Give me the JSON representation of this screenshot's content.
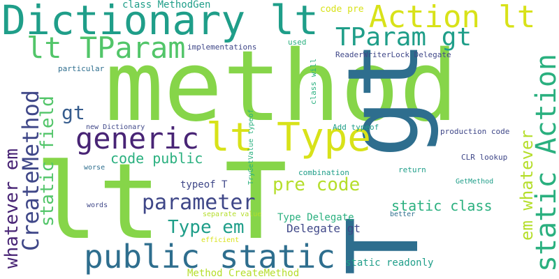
{
  "palette": {
    "yellow": "#d8e219",
    "yellow_green": "#b5de2b",
    "light_green": "#86d549",
    "green": "#52c569",
    "teal_green": "#2ab07f",
    "teal": "#1f9e89",
    "teal_blue": "#26828e",
    "steel_blue": "#2e6e8e",
    "slate_blue": "#365c8d",
    "indigo": "#3f4788",
    "violet": "#482475",
    "dark_purple": "#440154"
  },
  "words": [
    {
      "text": "method"
    },
    {
      "text": "lt T"
    },
    {
      "text": "T gt"
    },
    {
      "text": "Dictionary lt"
    },
    {
      "text": "Action lt"
    },
    {
      "text": "lt Type"
    },
    {
      "text": "public static"
    },
    {
      "text": "lt TParam"
    },
    {
      "text": "TParam gt"
    },
    {
      "text": "generic"
    },
    {
      "text": "static Action"
    },
    {
      "text": "CreateMethod"
    },
    {
      "text": "whatever em"
    },
    {
      "text": "em whatever"
    },
    {
      "text": "static field"
    },
    {
      "text": "pre code"
    },
    {
      "text": "parameter"
    },
    {
      "text": "Type em"
    },
    {
      "text": "code public"
    },
    {
      "text": "gt"
    },
    {
      "text": "static class"
    },
    {
      "text": "Delegate gt"
    },
    {
      "text": "Type Delegate"
    },
    {
      "text": "static readonly"
    },
    {
      "text": "Method CreateMethod"
    },
    {
      "text": "typeof T"
    },
    {
      "text": "class MethodGen"
    },
    {
      "text": "code pre"
    },
    {
      "text": "implementations"
    },
    {
      "text": "used"
    },
    {
      "text": "ReaderWriterLock Delegate"
    },
    {
      "text": "particular"
    },
    {
      "text": "class will"
    },
    {
      "text": "CLR lookup"
    },
    {
      "text": "Add typeof"
    },
    {
      "text": "production code"
    },
    {
      "text": "new Dictionary"
    },
    {
      "text": "TryGetValue typeof"
    },
    {
      "text": "worse"
    },
    {
      "text": "combination"
    },
    {
      "text": "return"
    },
    {
      "text": "GetMethod"
    },
    {
      "text": "words"
    },
    {
      "text": "separate value"
    },
    {
      "text": "better"
    },
    {
      "text": "efficient"
    }
  ]
}
